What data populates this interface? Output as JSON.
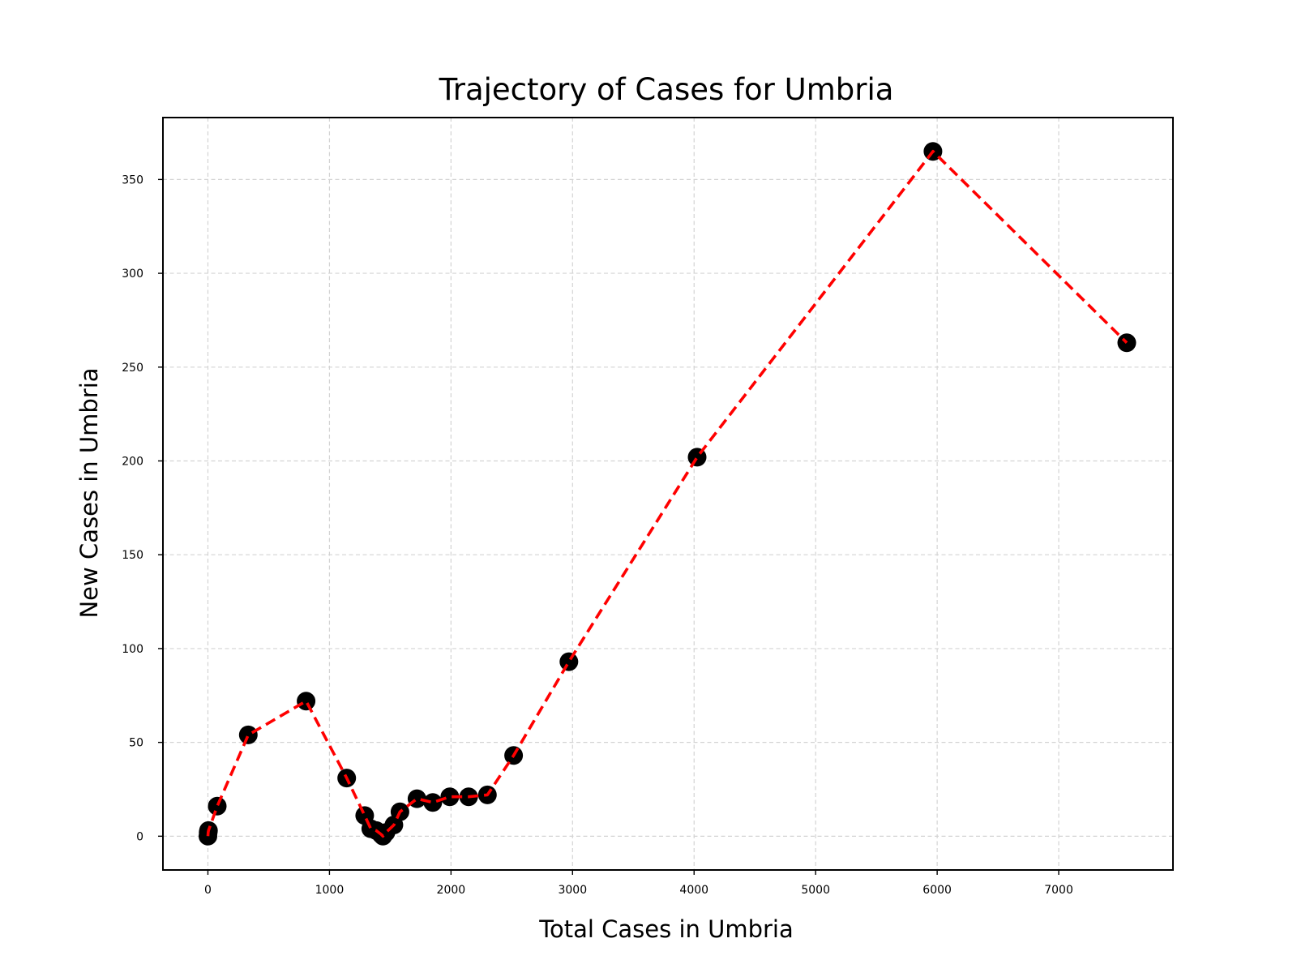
{
  "chart_data": {
    "type": "line",
    "title": "Trajectory of Cases for Umbria",
    "xlabel": "Total Cases in Umbria",
    "ylabel": "New Cases in Umbria",
    "xlim": [
      -370,
      7940
    ],
    "ylim": [
      -18,
      383
    ],
    "xticks": [
      0,
      1000,
      2000,
      3000,
      4000,
      5000,
      6000,
      7000
    ],
    "yticks": [
      0,
      50,
      100,
      150,
      200,
      250,
      300,
      350
    ],
    "grid": true,
    "grid_style": "dashed",
    "line_color": "#ff0000",
    "line_style": "dashed",
    "marker_color": "#000000",
    "series": [
      {
        "x": [
          0,
          2,
          5,
          77,
          332,
          808,
          1142,
          1290,
          1340,
          1385,
          1425,
          1440,
          1465,
          1530,
          1580,
          1720,
          1850,
          1990,
          2145,
          2300,
          2515,
          2970,
          4025,
          5965,
          7560
        ],
        "y": [
          0,
          2,
          3,
          16,
          54,
          72,
          31,
          11,
          4,
          3,
          1,
          0,
          2,
          6,
          13,
          20,
          18,
          21,
          21,
          22,
          43,
          93,
          202,
          365,
          263
        ]
      }
    ]
  }
}
